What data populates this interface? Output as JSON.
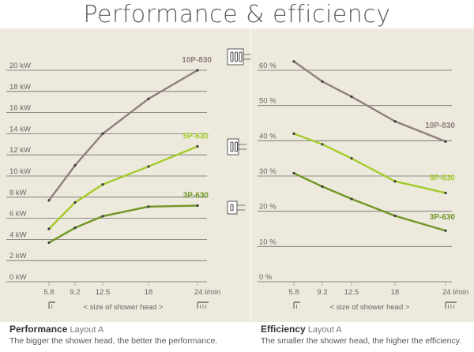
{
  "page": {
    "title": "Performance & efficiency",
    "colors": {
      "panel": "#ede9dc",
      "grid": "#6d6d6d",
      "text": "#555555"
    }
  },
  "captions": {
    "left": {
      "title": "Performance",
      "subtitle": "Layout A",
      "text": "The bigger the shower head, the better the performance."
    },
    "right": {
      "title": "Efficiency",
      "subtitle": "Layout A",
      "text": "The smaller the shower head, the higher the efficiency."
    }
  },
  "chart_data": [
    {
      "type": "line",
      "title": "",
      "xlabel": "< size of shower head >",
      "ylabel": "",
      "x": [
        5.8,
        9.2,
        12.5,
        18,
        24
      ],
      "x_tick_labels": [
        "5.8",
        "9.2",
        "12.5",
        "18",
        "24 l/min"
      ],
      "ylim": [
        0,
        20
      ],
      "y_ticks": [
        0,
        2,
        4,
        6,
        8,
        10,
        12,
        14,
        16,
        18,
        20
      ],
      "y_tick_labels": [
        "0 kW",
        "2 kW",
        "4 kW",
        "6 kW",
        "8 kW",
        "10 kW",
        "12 kW",
        "14 kW",
        "16 kW",
        "18 kW",
        "20 kW"
      ],
      "grid": true,
      "series": [
        {
          "name": "10P-830",
          "color": "#8e7f7e",
          "values": [
            7.7,
            11.0,
            14.0,
            17.3,
            20.0
          ]
        },
        {
          "name": "5P-630",
          "color": "#a3cc2a",
          "values": [
            5.0,
            7.5,
            9.2,
            10.9,
            12.8
          ]
        },
        {
          "name": "3P-630",
          "color": "#6f9625",
          "values": [
            3.7,
            5.1,
            6.2,
            7.1,
            7.2
          ]
        }
      ]
    },
    {
      "type": "line",
      "title": "",
      "xlabel": "< size of shower head >",
      "ylabel": "",
      "x": [
        5.8,
        9.2,
        12.5,
        18,
        24
      ],
      "x_tick_labels": [
        "5.8",
        "9.2",
        "12.5",
        "18",
        "24 l/min"
      ],
      "ylim": [
        0,
        60
      ],
      "y_ticks": [
        0,
        10,
        20,
        30,
        40,
        50,
        60
      ],
      "y_tick_labels": [
        "0 %",
        "10 %",
        "20 %",
        "30 %",
        "40 %",
        "50 %",
        "60 %"
      ],
      "grid": true,
      "series": [
        {
          "name": "10P-830",
          "color": "#8e7f7e",
          "values": [
            62.5,
            56.8,
            52.5,
            45.5,
            39.8
          ]
        },
        {
          "name": "5P-630",
          "color": "#a3cc2a",
          "values": [
            42.0,
            39.0,
            35.0,
            28.5,
            25.2
          ]
        },
        {
          "name": "3P-630",
          "color": "#6f9625",
          "values": [
            30.8,
            27.0,
            23.5,
            18.7,
            14.5
          ]
        }
      ]
    }
  ]
}
